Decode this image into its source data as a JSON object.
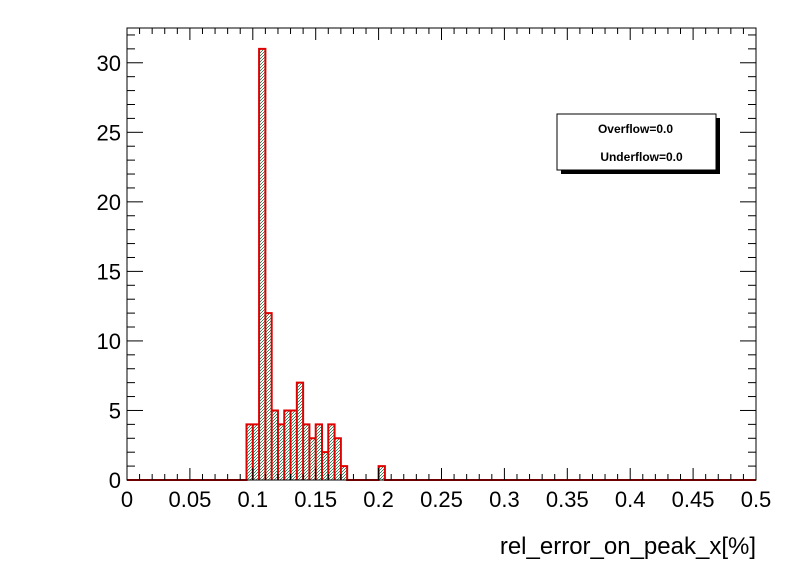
{
  "chart_data": {
    "type": "histogram",
    "xlabel": "rel_error_on_peak_x[%]",
    "ylabel": "",
    "xlim": [
      0,
      0.5
    ],
    "ylim": [
      0,
      32.5
    ],
    "bin_width": 0.005,
    "x_ticks": [
      "0",
      "0.05",
      "0.1",
      "0.15",
      "0.2",
      "0.25",
      "0.3",
      "0.35",
      "0.4",
      "0.45",
      "0.5"
    ],
    "x_tick_values": [
      0,
      0.05,
      0.1,
      0.15,
      0.2,
      0.25,
      0.3,
      0.35,
      0.4,
      0.45,
      0.5
    ],
    "y_ticks": [
      "0",
      "5",
      "10",
      "15",
      "20",
      "25",
      "30"
    ],
    "y_tick_values": [
      0,
      5,
      10,
      15,
      20,
      25,
      30
    ],
    "bins": [
      {
        "x": 0.095,
        "y": 4
      },
      {
        "x": 0.1,
        "y": 4
      },
      {
        "x": 0.105,
        "y": 31
      },
      {
        "x": 0.11,
        "y": 12
      },
      {
        "x": 0.115,
        "y": 5
      },
      {
        "x": 0.12,
        "y": 4
      },
      {
        "x": 0.125,
        "y": 5
      },
      {
        "x": 0.13,
        "y": 5
      },
      {
        "x": 0.135,
        "y": 7
      },
      {
        "x": 0.14,
        "y": 4
      },
      {
        "x": 0.145,
        "y": 3
      },
      {
        "x": 0.15,
        "y": 4
      },
      {
        "x": 0.155,
        "y": 2
      },
      {
        "x": 0.16,
        "y": 4
      },
      {
        "x": 0.165,
        "y": 3
      },
      {
        "x": 0.17,
        "y": 1
      },
      {
        "x": 0.2,
        "y": 1
      }
    ],
    "fill_color": "#2f8f5f",
    "line_color": "#e00000",
    "grid": false,
    "legend": {
      "placement": "top-right",
      "entries": [
        "Overflow=0.0",
        "Underflow=0.0"
      ]
    }
  }
}
